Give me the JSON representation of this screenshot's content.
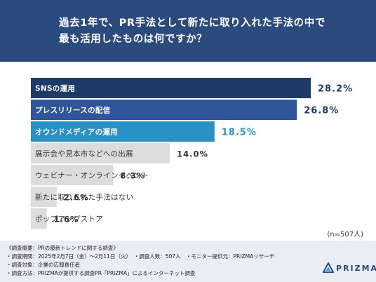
{
  "header": {
    "title": "過去1年で、PR手法として新たに取り入れた手法の中で\n最も活用したものは何ですか？"
  },
  "chart_data": {
    "type": "bar",
    "orientation": "horizontal",
    "title": "過去1年で、PR手法として新たに取り入れた手法の中で最も活用したものは何ですか？",
    "categories": [
      "SNSの運用",
      "プレスリリースの配信",
      "オウンドメディアの運用",
      "展示会や見本市などへの出展",
      "ウェビナー・オンラインイベント",
      "新たに取り入れた手法はない",
      "ポップアップストア"
    ],
    "values": [
      28.2,
      26.8,
      18.5,
      14.0,
      8.3,
      2.6,
      1.6
    ],
    "value_labels": [
      "28.2%",
      "26.8%",
      "18.5%",
      "14.0%",
      "8.3%",
      "2.6%",
      "1.6%"
    ],
    "colors": [
      "#1e3a68",
      "#31559a",
      "#2a91c7",
      "#dcdcdc",
      "#dcdcdc",
      "#dcdcdc",
      "#dcdcdc"
    ],
    "label_colors": [
      "#ffffff",
      "#ffffff",
      "#ffffff",
      "#333333",
      "#333333",
      "#333333",
      "#333333"
    ],
    "value_colors": [
      "#1e3a68",
      "#1e3a68",
      "#2a91c7",
      "#333333",
      "#333333",
      "#333333",
      "#333333"
    ],
    "xlim": [
      0,
      28.2
    ],
    "grid": false,
    "note": "(n=507人)"
  },
  "footer": {
    "lines": [
      "《調査概要：PRの最新トレンドに関する調査》",
      "・調査期間：2025年2月7日（金）〜2月11日（火）　・調査人数：507人　・モニター提供元：PRIZMAリサーチ",
      "・調査対象：企業の広報責任者",
      "・調査方法：PRIZMAが提供する調査PR「PRIZMA」によるインターネット調査"
    ]
  },
  "brand": {
    "name": "PRIZMA",
    "color": "#2b4a7d",
    "icon": "prism-triangle-icon"
  }
}
